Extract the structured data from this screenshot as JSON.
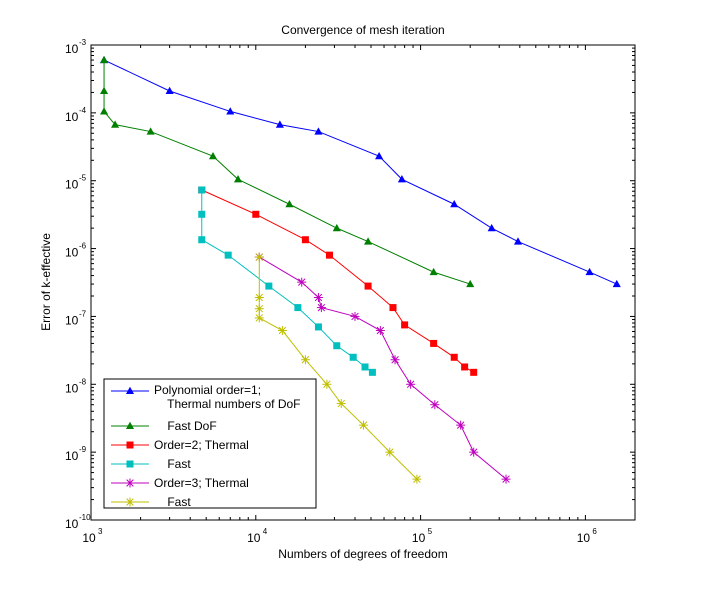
{
  "chart_data": {
    "type": "line",
    "title": "Convergence of mesh iteration",
    "xlabel": "Numbers of degrees of freedom",
    "ylabel": "Error of k-effective",
    "xscale": "log",
    "yscale": "log",
    "xlim": [
      1000,
      2000000
    ],
    "ylim": [
      1e-10,
      0.001
    ],
    "grid": false,
    "legend_position": "bottom-left",
    "x_ticks": [
      {
        "value": 1000,
        "base": "10",
        "exp": "3"
      },
      {
        "value": 10000,
        "base": "10",
        "exp": "4"
      },
      {
        "value": 100000,
        "base": "10",
        "exp": "5"
      },
      {
        "value": 1000000,
        "base": "10",
        "exp": "6"
      }
    ],
    "y_ticks": [
      {
        "value": 0.001,
        "base": "10",
        "exp": "-3"
      },
      {
        "value": 0.0001,
        "base": "10",
        "exp": "-4"
      },
      {
        "value": 1e-05,
        "base": "10",
        "exp": "-5"
      },
      {
        "value": 1e-06,
        "base": "10",
        "exp": "-6"
      },
      {
        "value": 1e-07,
        "base": "10",
        "exp": "-7"
      },
      {
        "value": 1e-08,
        "base": "10",
        "exp": "-8"
      },
      {
        "value": 1e-09,
        "base": "10",
        "exp": "-9"
      },
      {
        "value": 1e-10,
        "base": "10",
        "exp": "-10"
      }
    ],
    "series": [
      {
        "legend": [
          "Polynomial order=1;",
          "    Thermal numbers of DoF"
        ],
        "color": "#0000ff",
        "marker": "triangle",
        "points": [
          [
            1200,
            0.0006
          ],
          [
            3000,
            0.00021
          ],
          [
            7000,
            0.000105
          ],
          [
            14000,
            6.7e-05
          ],
          [
            24000,
            5.3e-05
          ],
          [
            56000,
            2.3e-05
          ],
          [
            77000,
            1.05e-05
          ],
          [
            160000,
            4.5e-06
          ],
          [
            270000,
            2e-06
          ],
          [
            390000,
            1.27e-06
          ],
          [
            1060000,
            4.5e-07
          ],
          [
            1550000,
            3e-07
          ]
        ]
      },
      {
        "legend": [
          "    Fast DoF"
        ],
        "color": "#008000",
        "marker": "triangle",
        "points": [
          [
            1200,
            0.0006
          ],
          [
            1200,
            0.00021
          ],
          [
            1200,
            0.000105
          ],
          [
            1400,
            6.7e-05
          ],
          [
            2300,
            5.3e-05
          ],
          [
            5500,
            2.3e-05
          ],
          [
            7800,
            1.05e-05
          ],
          [
            16000,
            4.5e-06
          ],
          [
            31000,
            2e-06
          ],
          [
            48000,
            1.27e-06
          ],
          [
            120000,
            4.5e-07
          ],
          [
            200000,
            3e-07
          ]
        ]
      },
      {
        "legend": [
          "Order=2; Thermal"
        ],
        "color": "#ff0000",
        "marker": "square",
        "points": [
          [
            4700,
            7.3e-06
          ],
          [
            10000,
            3.2e-06
          ],
          [
            20000,
            1.35e-06
          ],
          [
            28000,
            8e-07
          ],
          [
            48000,
            2.8e-07
          ],
          [
            68000,
            1.35e-07
          ],
          [
            80000,
            7.5e-08
          ],
          [
            120000,
            4e-08
          ],
          [
            160000,
            2.5e-08
          ],
          [
            185000,
            1.8e-08
          ],
          [
            210000,
            1.5e-08
          ]
        ]
      },
      {
        "legend": [
          "    Fast"
        ],
        "color": "#00bfbf",
        "marker": "square",
        "points": [
          [
            4700,
            7.3e-06
          ],
          [
            4700,
            3.2e-06
          ],
          [
            4700,
            1.35e-06
          ],
          [
            6800,
            8e-07
          ],
          [
            12000,
            2.8e-07
          ],
          [
            18000,
            1.35e-07
          ],
          [
            24000,
            7e-08
          ],
          [
            31000,
            3.7e-08
          ],
          [
            39000,
            2.5e-08
          ],
          [
            46000,
            1.8e-08
          ],
          [
            51000,
            1.5e-08
          ]
        ]
      },
      {
        "legend": [
          "Order=3; Thermal"
        ],
        "color": "#bf00bf",
        "marker": "star",
        "points": [
          [
            10500,
            7.5e-07
          ],
          [
            19000,
            3.2e-07
          ],
          [
            24000,
            1.9e-07
          ],
          [
            25000,
            1.35e-07
          ],
          [
            40000,
            1e-07
          ],
          [
            57000,
            6.2e-08
          ],
          [
            70000,
            2.3e-08
          ],
          [
            87000,
            1e-08
          ],
          [
            122000,
            5e-09
          ],
          [
            175000,
            2.5e-09
          ],
          [
            210000,
            1e-09
          ],
          [
            330000,
            4e-10
          ]
        ]
      },
      {
        "legend": [
          "    Fast"
        ],
        "color": "#bfbf00",
        "marker": "star",
        "points": [
          [
            10500,
            7.5e-07
          ],
          [
            10500,
            1.9e-07
          ],
          [
            10500,
            1.3e-07
          ],
          [
            10500,
            9.5e-08
          ],
          [
            14500,
            6.2e-08
          ],
          [
            20000,
            2.3e-08
          ],
          [
            27000,
            1e-08
          ],
          [
            33000,
            5.2e-09
          ],
          [
            45000,
            2.5e-09
          ],
          [
            65000,
            1e-09
          ],
          [
            95000,
            4e-10
          ]
        ]
      }
    ]
  }
}
